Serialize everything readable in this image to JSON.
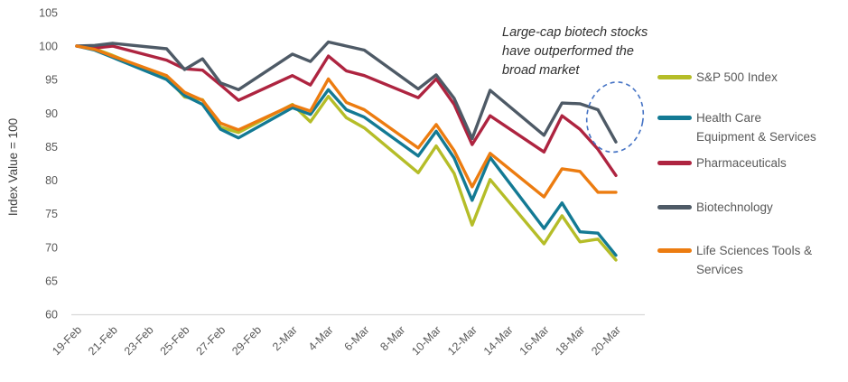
{
  "annotation": {
    "lines": [
      "Large-cap biotech stocks",
      "have outperformed the",
      "broad market"
    ],
    "color": "#2f2f2f"
  },
  "axis": {
    "tick_text_color": "#595959",
    "axis_line_color": "#d9d9d9",
    "y_title_color": "#404040"
  },
  "chart_data": {
    "type": "line",
    "title": "",
    "xlabel": "",
    "ylabel": "Index Value = 100",
    "ylim": [
      60,
      105
    ],
    "ytick_step": 5,
    "grid": false,
    "legend_position": "right",
    "x": [
      "19-Feb",
      "20-Feb",
      "21-Feb",
      "24-Feb",
      "25-Feb",
      "26-Feb",
      "27-Feb",
      "28-Feb",
      "2-Mar",
      "3-Mar",
      "4-Mar",
      "5-Mar",
      "6-Mar",
      "9-Mar",
      "10-Mar",
      "11-Mar",
      "12-Mar",
      "13-Mar",
      "16-Mar",
      "17-Mar",
      "18-Mar",
      "19-Mar",
      "20-Mar"
    ],
    "x_day_offsets": [
      0,
      1,
      2,
      5,
      6,
      7,
      8,
      9,
      12,
      13,
      14,
      15,
      16,
      19,
      20,
      21,
      22,
      23,
      26,
      27,
      28,
      29,
      30
    ],
    "x_tick_labels": [
      "19-Feb",
      "21-Feb",
      "23-Feb",
      "25-Feb",
      "27-Feb",
      "29-Feb",
      "2-Mar",
      "4-Mar",
      "6-Mar",
      "8-Mar",
      "10-Mar",
      "12-Mar",
      "14-Mar",
      "16-Mar",
      "18-Mar",
      "20-Mar"
    ],
    "x_tick_day_offsets": [
      0,
      2,
      4,
      6,
      8,
      10,
      12,
      14,
      16,
      18,
      20,
      22,
      24,
      26,
      28,
      30
    ],
    "series": [
      {
        "name": "S&P 500 Index",
        "legend_lines": [
          "S&P 500 Index"
        ],
        "color": "#b5bd28",
        "values": [
          100,
          99.6,
          98.6,
          95.3,
          92.4,
          92.0,
          87.9,
          87.1,
          91.3,
          88.7,
          92.5,
          89.3,
          87.8,
          81.1,
          85.1,
          81.0,
          73.3,
          80.1,
          70.5,
          74.7,
          70.8,
          71.2,
          68.1
        ]
      },
      {
        "name": "Health Care Equipment & Services",
        "legend_lines": [
          "Health Care",
          "Equipment & Services"
        ],
        "color": "#137a94",
        "values": [
          100,
          99.4,
          98.3,
          95.0,
          92.6,
          91.3,
          87.6,
          86.3,
          90.8,
          89.8,
          93.5,
          90.5,
          89.4,
          83.6,
          87.3,
          83.3,
          77.0,
          83.4,
          72.8,
          76.6,
          72.3,
          72.1,
          68.8
        ]
      },
      {
        "name": "Pharmaceuticals",
        "legend_lines": [
          "Pharmaceuticals"
        ],
        "color": "#ae2440",
        "values": [
          100,
          99.7,
          100.0,
          97.9,
          96.6,
          96.4,
          94.2,
          91.9,
          95.6,
          94.2,
          98.5,
          96.3,
          95.6,
          92.3,
          95.1,
          91.3,
          85.3,
          89.6,
          84.2,
          89.6,
          87.6,
          84.6,
          80.7
        ]
      },
      {
        "name": "Biotechnology",
        "legend_lines": [
          "Biotechnology"
        ],
        "color": "#4e5a66",
        "values": [
          100,
          100.1,
          100.4,
          99.6,
          96.5,
          98.1,
          94.5,
          93.5,
          98.8,
          97.7,
          100.6,
          100.0,
          99.4,
          93.6,
          95.7,
          92.2,
          86.2,
          93.4,
          86.7,
          91.5,
          91.4,
          90.5,
          85.7
        ]
      },
      {
        "name": "Life Sciences Tools & Services",
        "legend_lines": [
          "Life Sciences Tools &",
          "Services"
        ],
        "color": "#ec7c10",
        "values": [
          100,
          99.5,
          98.5,
          95.6,
          93.1,
          91.9,
          88.5,
          87.5,
          91.2,
          90.3,
          95.1,
          91.6,
          90.5,
          84.8,
          88.3,
          84.4,
          79.0,
          84.0,
          77.5,
          81.7,
          81.3,
          78.2,
          78.2
        ]
      }
    ],
    "highlight_ellipse": {
      "color": "#4472c4",
      "style": "dashed",
      "center_day": 29.95,
      "center_value": 89.4,
      "rx_days": 1.56,
      "ry_values": 5.25,
      "rotate_deg": 10
    }
  }
}
